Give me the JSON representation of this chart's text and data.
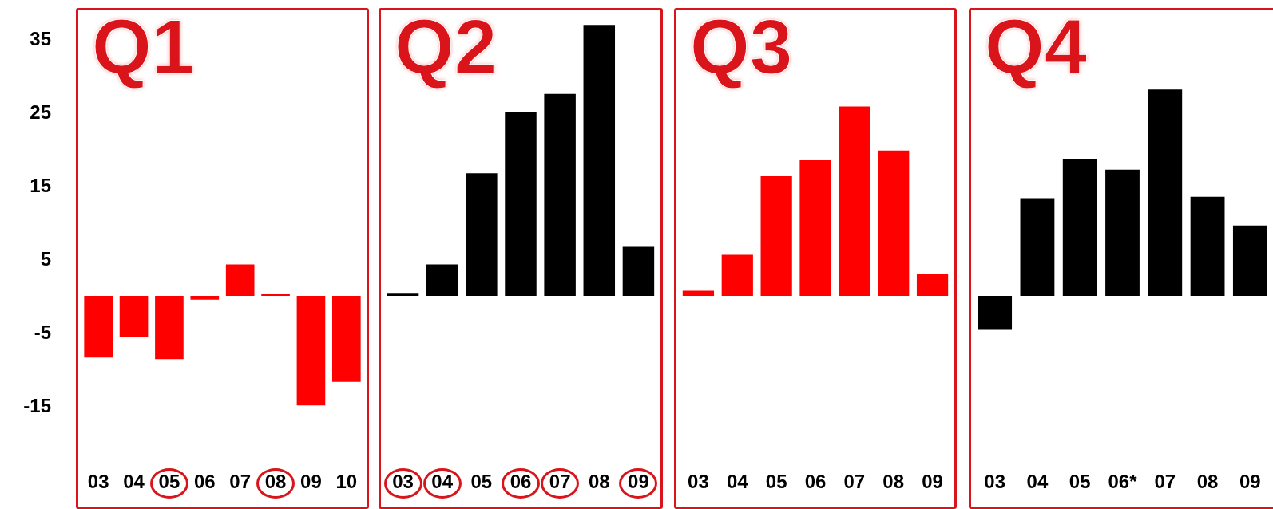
{
  "chart_data": [
    {
      "type": "bar",
      "title": "Q1",
      "categories": [
        "03",
        "04",
        "05",
        "06",
        "07",
        "08",
        "09",
        "10"
      ],
      "values": [
        -8.4,
        -5.6,
        -8.6,
        -0.5,
        4.3,
        0.3,
        -14.9,
        -11.7
      ],
      "color": "#ff0000",
      "ylim": [
        -29,
        39
      ],
      "yticks": [
        -15,
        -5,
        5,
        15,
        25,
        35
      ]
    },
    {
      "type": "bar",
      "title": "Q2",
      "categories": [
        "03",
        "04",
        "05",
        "06",
        "07",
        "08",
        "09"
      ],
      "values": [
        0.4,
        4.3,
        16.7,
        25.1,
        27.5,
        36.9,
        6.8
      ],
      "color": "#000000",
      "ylim": [
        -29,
        39
      ],
      "yticks": [
        -15,
        -5,
        5,
        15,
        25,
        35
      ],
      "tick_labels": "x"
    },
    {
      "type": "bar",
      "title": "Q3",
      "categories": [
        "03",
        "04",
        "05",
        "06",
        "07",
        "08",
        "09"
      ],
      "values": [
        0.7,
        5.6,
        16.3,
        18.5,
        25.8,
        19.8,
        3.0
      ],
      "color": "#ff0000",
      "ylim": [
        -29,
        39
      ],
      "yticks": [
        -15,
        -5,
        5,
        15,
        25,
        35
      ],
      "tick_labels": "x"
    },
    {
      "type": "bar",
      "title": "Q4",
      "categories": [
        "03",
        "04",
        "05",
        "06*",
        "07",
        "08",
        "09"
      ],
      "values": [
        -4.6,
        13.3,
        18.7,
        17.2,
        28.1,
        13.5,
        9.6
      ],
      "color": "#000000",
      "ylim": [
        -29,
        39
      ],
      "yticks": [
        -15,
        -5,
        5,
        15,
        25,
        35
      ],
      "tick_labels": "x"
    }
  ]
}
